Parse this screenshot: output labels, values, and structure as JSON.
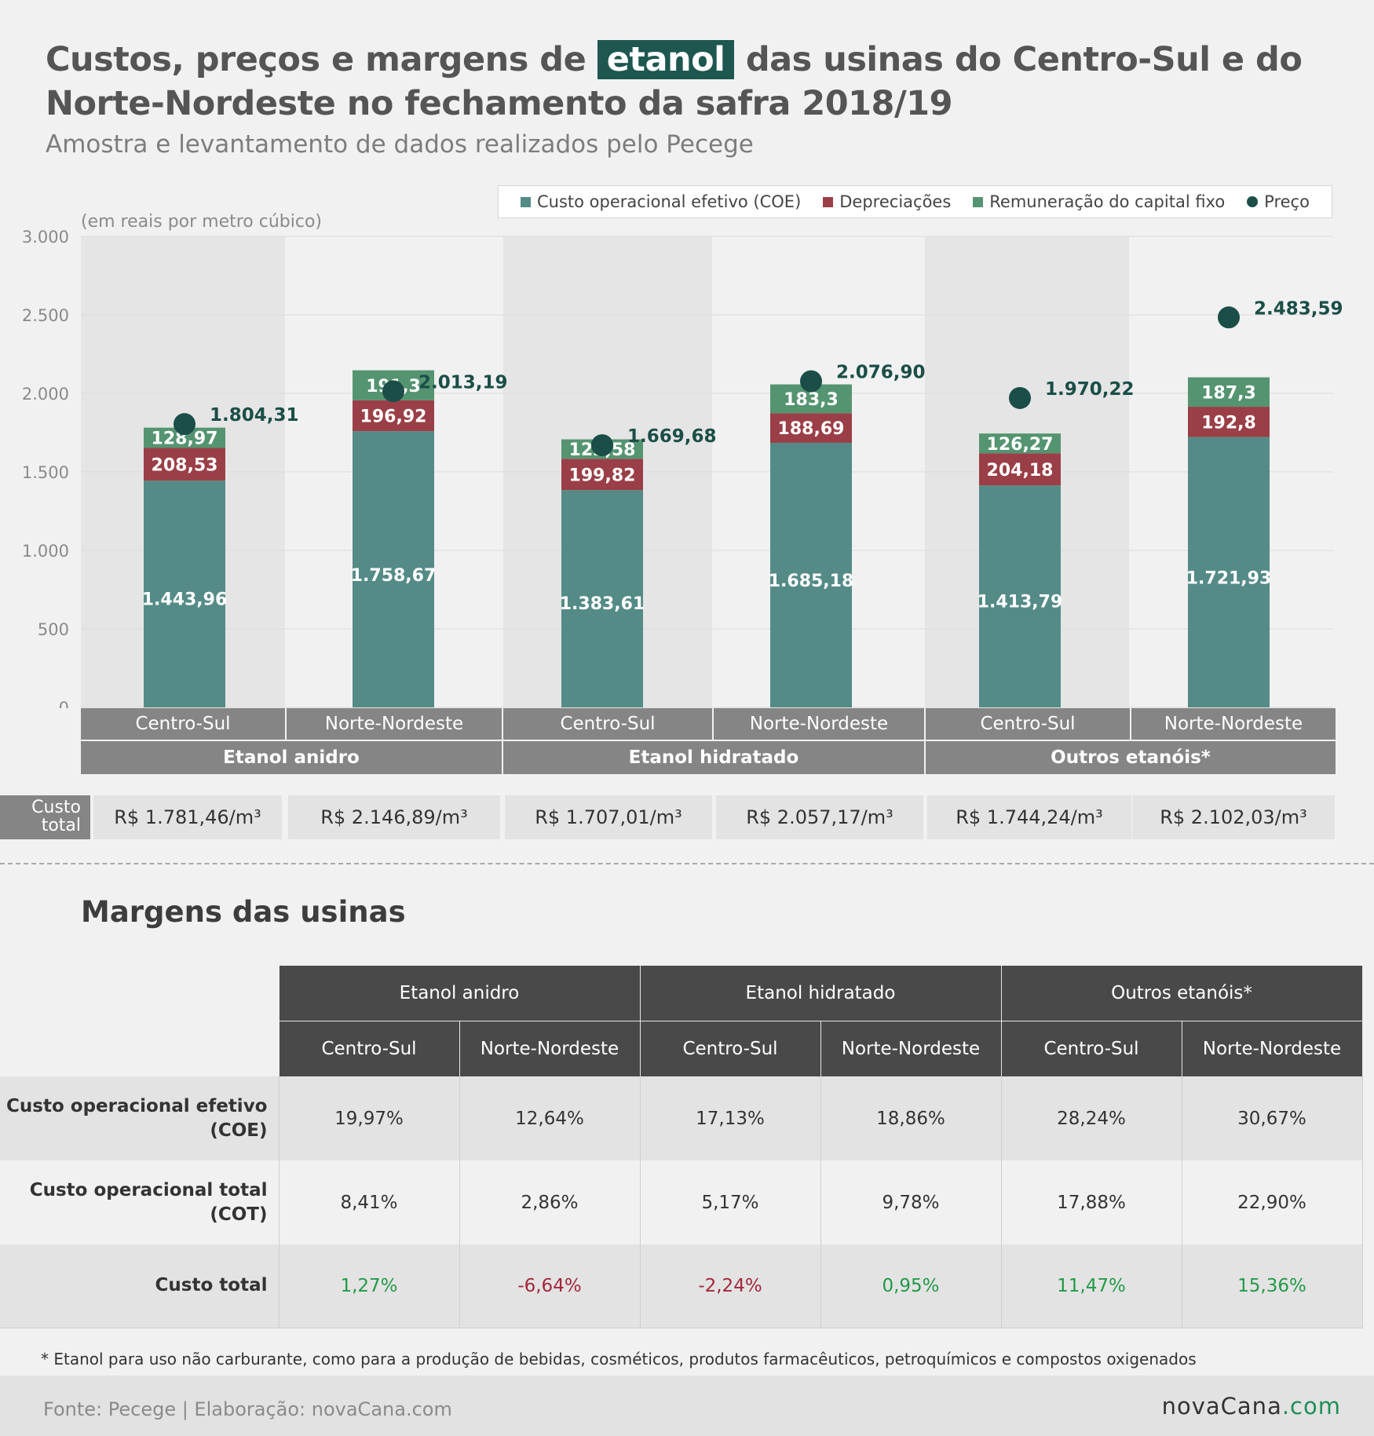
{
  "title": {
    "before": "Custos, preços e margens de",
    "highlight": "etanol",
    "after": "das usinas do Centro-Sul e do Norte-Nordeste no fechamento da safra 2018/19"
  },
  "subtitle": "Amostra e levantamento de dados realizados pelo Pecege",
  "legend": {
    "coe": "Custo operacional efetivo (COE)",
    "dep": "Depreciações",
    "rem": "Remuneração do capital fixo",
    "preco": "Preço"
  },
  "colors": {
    "coe": "#548b87",
    "dep": "#9a3f47",
    "rem": "#559471",
    "preco": "#1b4e48",
    "title_highlight": "#1d5750"
  },
  "unit_label": "(em reais por metro cúbico)",
  "chart_data": {
    "type": "bar",
    "stacked": true,
    "groups": [
      "Etanol anidro",
      "Etanol hidratado",
      "Outros etanóis*"
    ],
    "categories": [
      "Centro-Sul",
      "Norte-Nordeste",
      "Centro-Sul",
      "Norte-Nordeste",
      "Centro-Sul",
      "Norte-Nordeste"
    ],
    "series": [
      {
        "name": "Custo operacional efetivo (COE)",
        "values": [
          1443.96,
          1758.67,
          1383.61,
          1685.18,
          1413.79,
          1721.93
        ],
        "labels": [
          "1.443,96",
          "1.758,67",
          "1.383,61",
          "1.685,18",
          "1.413,79",
          "1.721,93"
        ]
      },
      {
        "name": "Depreciações",
        "values": [
          208.53,
          196.92,
          199.82,
          188.69,
          204.18,
          192.8
        ],
        "labels": [
          "208,53",
          "196,92",
          "199,82",
          "188,69",
          "204,18",
          "192,8"
        ]
      },
      {
        "name": "Remuneração do capital fixo",
        "values": [
          128.97,
          191.3,
          123.58,
          183.3,
          126.27,
          187.3
        ],
        "labels": [
          "128,97",
          "191,3",
          "123,58",
          "183,3",
          "126,27",
          "187,3"
        ]
      }
    ],
    "price": {
      "name": "Preço",
      "values": [
        1804.31,
        2013.19,
        1669.68,
        2076.9,
        1970.22,
        2483.59
      ],
      "labels": [
        "1.804,31",
        "2.013,19",
        "1.669,68",
        "2.076,90",
        "1.970,22",
        "2.483,59"
      ]
    },
    "ylim": [
      0,
      3000
    ],
    "yticks": [
      0,
      500,
      1000,
      1500,
      2000,
      2500,
      3000
    ],
    "ytick_labels": [
      "0",
      "500",
      "1.000",
      "1.500",
      "2.000",
      "2.500",
      "3.000"
    ],
    "grid": true,
    "legend_position": "top-right"
  },
  "custo_total": {
    "label": "Custo total",
    "values": [
      "R$ 1.781,46/m³",
      "R$ 2.146,89/m³",
      "R$ 1.707,01/m³",
      "R$ 2.057,17/m³",
      "R$ 1.744,24/m³",
      "R$ 2.102,03/m³"
    ]
  },
  "margins": {
    "title": "Margens das usinas",
    "groups": [
      "Etanol anidro",
      "Etanol hidratado",
      "Outros etanóis*"
    ],
    "subheaders": [
      "Centro-Sul",
      "Norte-Nordeste",
      "Centro-Sul",
      "Norte-Nordeste",
      "Centro-Sul",
      "Norte-Nordeste"
    ],
    "rows": [
      {
        "label": "Custo operacional efetivo (COE)",
        "values": [
          "19,97%",
          "12,64%",
          "17,13%",
          "18,86%",
          "28,24%",
          "30,67%"
        ]
      },
      {
        "label": "Custo operacional total (COT)",
        "values": [
          "8,41%",
          "2,86%",
          "5,17%",
          "9,78%",
          "17,88%",
          "22,90%"
        ]
      },
      {
        "label": "Custo total",
        "values": [
          "1,27%",
          "-6,64%",
          "-2,24%",
          "0,95%",
          "11,47%",
          "15,36%"
        ]
      }
    ]
  },
  "footnote": "* Etanol para uso não carburante, como para a produção de bebidas, cosméticos, produtos farmacêuticos, petroquímicos e compostos oxigenados",
  "source": "Fonte: Pecege | Elaboração: novaCana.com",
  "logo": {
    "main": "novaCana",
    "suffix": ".com"
  }
}
